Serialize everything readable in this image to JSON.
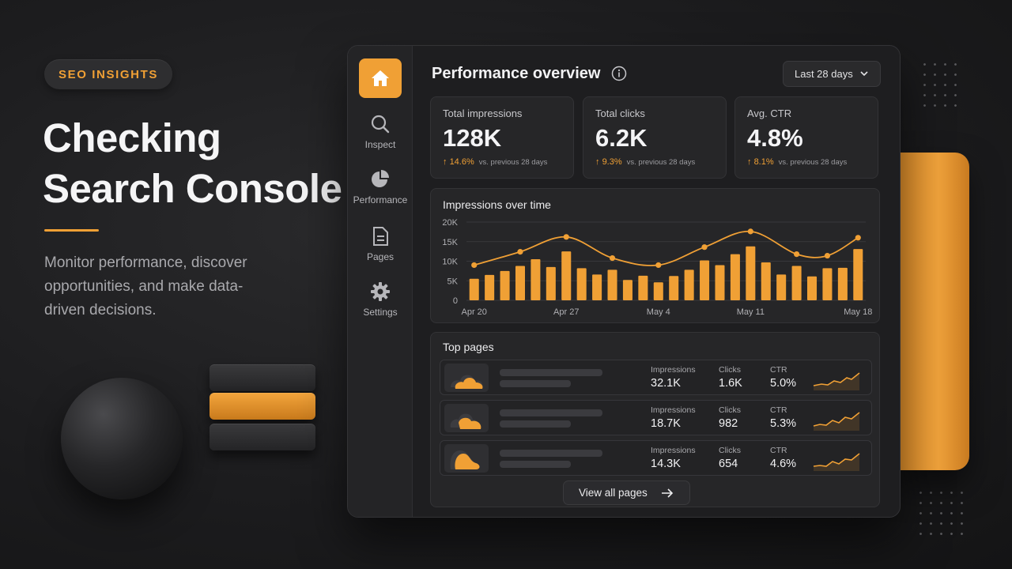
{
  "hero": {
    "badge": "SEO INSIGHTS",
    "title_line1": "Checking",
    "title_line2": "Search Console",
    "subtitle": "Monitor performance, discover opportunities, and make data-driven decisions."
  },
  "sidebar": {
    "items": [
      {
        "label": "Inspect",
        "icon": "search-icon"
      },
      {
        "label": "Performance",
        "icon": "pie-chart-icon"
      },
      {
        "label": "Pages",
        "icon": "document-icon"
      },
      {
        "label": "Settings",
        "icon": "gear-icon"
      }
    ]
  },
  "header": {
    "title": "Performance overview",
    "date_range": "Last 28 days"
  },
  "kpis": [
    {
      "label": "Total impressions",
      "value": "128K",
      "delta": "14.6%",
      "compare": "vs. previous 28 days"
    },
    {
      "label": "Total clicks",
      "value": "6.2K",
      "delta": "9.3%",
      "compare": "vs. previous 28 days"
    },
    {
      "label": "Avg. CTR",
      "value": "4.8%",
      "delta": "8.1%",
      "compare": "vs. previous 28 days"
    }
  ],
  "chart": {
    "title": "Impressions over time"
  },
  "chart_data": {
    "type": "bar",
    "title": "Impressions over time",
    "ylim": [
      0,
      20000
    ],
    "y_ticks": [
      "20K",
      "15K",
      "10K",
      "5K",
      "0"
    ],
    "x_tick_labels": [
      "Apr 20",
      "Apr 27",
      "May 4",
      "May 11",
      "May 18"
    ],
    "values": [
      5500,
      6500,
      7500,
      8800,
      10500,
      8500,
      12500,
      8200,
      6600,
      7800,
      5200,
      6300,
      4600,
      6200,
      7800,
      10200,
      9000,
      11800,
      13800,
      9700,
      6600,
      8800,
      6100,
      8200,
      8300,
      13100
    ],
    "line": {
      "x_index": [
        0,
        3,
        6,
        9,
        12,
        15,
        18,
        21,
        23,
        25
      ],
      "values": [
        9000,
        12400,
        16200,
        10800,
        9000,
        13600,
        17600,
        11800,
        11400,
        16000
      ]
    },
    "grid": true,
    "colors": {
      "bar": "#f0a035",
      "line": "#f0a035"
    }
  },
  "top_pages": {
    "title": "Top pages",
    "labels": {
      "impressions": "Impressions",
      "clicks": "Clicks",
      "ctr": "CTR"
    },
    "rows": [
      {
        "impressions": "32.1K",
        "clicks": "1.6K",
        "ctr": "5.0%"
      },
      {
        "impressions": "18.7K",
        "clicks": "982",
        "ctr": "5.3%"
      },
      {
        "impressions": "14.3K",
        "clicks": "654",
        "ctr": "4.6%"
      }
    ],
    "view_all": "View all pages"
  },
  "colors": {
    "accent": "#f0a035",
    "panel": "#1e1e20"
  }
}
